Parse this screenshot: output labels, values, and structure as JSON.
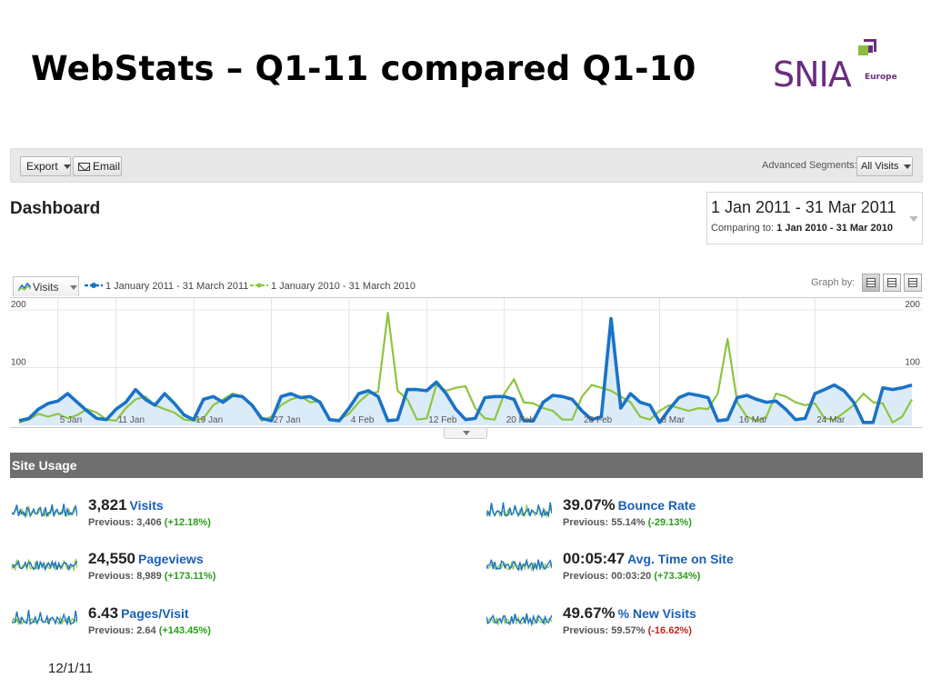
{
  "slide": {
    "title": "WebStats – Q1-11 compared Q1-10",
    "footer_date": "12/1/11"
  },
  "logo": {
    "text": "SNIA",
    "sub": "Europe",
    "colors": {
      "purple": "#6b2c7f",
      "green": "#8cbd3f"
    }
  },
  "toolbar": {
    "export_label": "Export",
    "email_label": "Email",
    "advanced_segments_label": "Advanced Segments:",
    "segment_value": "All Visits"
  },
  "dashboard": {
    "title": "Dashboard",
    "date_range": "1 Jan 2011 - 31 Mar 2011",
    "comparing_label": "Comparing to:",
    "comparing_range": "1 Jan 2010 - 31 Mar 2010"
  },
  "graph": {
    "metric_button": "Visits",
    "legend": [
      {
        "label": "1 January 2011 - 31 March 2011",
        "color": "#1a73c6"
      },
      {
        "label": "1 January 2010 - 31 March 2010",
        "color": "#8cc63f"
      }
    ],
    "graph_by_label": "Graph by:",
    "icons": [
      "visits-chart-icon",
      "graph-by-day-icon",
      "graph-by-week-icon",
      "graph-by-month-icon"
    ]
  },
  "chart_data": {
    "type": "line",
    "ylim": [
      0,
      200
    ],
    "y_ticks_left": [
      "200",
      "100"
    ],
    "y_ticks_right": [
      "200",
      "100"
    ],
    "x_tick_labels": [
      "5 Jan",
      "11 Jan",
      "19 Jan",
      "27 Jan",
      "4 Feb",
      "12 Feb",
      "20 Feb",
      "28 Feb",
      "8 Mar",
      "16 Mar",
      "24 Mar"
    ],
    "x_tick_days": [
      4,
      10,
      18,
      26,
      34,
      42,
      50,
      58,
      66,
      74,
      82
    ],
    "series": [
      {
        "name": "1 January 2011 - 31 March 2011",
        "color": "#1a73c6",
        "values": [
          8,
          12,
          28,
          38,
          42,
          55,
          40,
          25,
          12,
          10,
          28,
          40,
          62,
          45,
          35,
          55,
          38,
          18,
          10,
          45,
          50,
          40,
          52,
          50,
          35,
          12,
          8,
          50,
          55,
          48,
          50,
          40,
          10,
          8,
          30,
          55,
          60,
          50,
          8,
          10,
          62,
          62,
          60,
          75,
          55,
          28,
          10,
          12,
          48,
          50,
          50,
          45,
          8,
          8,
          40,
          52,
          50,
          45,
          25,
          10,
          15,
          185,
          30,
          55,
          40,
          35,
          5,
          28,
          48,
          55,
          52,
          48,
          8,
          10,
          48,
          52,
          45,
          40,
          42,
          28,
          10,
          12,
          55,
          62,
          70,
          60,
          40,
          5,
          5,
          65,
          62,
          65,
          70
        ]
      },
      {
        "name": "1 January 2010 - 31 March 2010",
        "color": "#8cc63f",
        "values": [
          5,
          10,
          20,
          15,
          20,
          12,
          18,
          28,
          22,
          10,
          8,
          30,
          45,
          50,
          35,
          28,
          22,
          10,
          8,
          12,
          35,
          45,
          55,
          50,
          35,
          8,
          15,
          35,
          45,
          50,
          40,
          42,
          10,
          10,
          20,
          40,
          55,
          58,
          195,
          60,
          45,
          10,
          12,
          70,
          60,
          65,
          68,
          30,
          12,
          10,
          55,
          80,
          40,
          38,
          30,
          25,
          10,
          10,
          50,
          70,
          65,
          60,
          50,
          40,
          15,
          10,
          25,
          35,
          30,
          25,
          30,
          28,
          55,
          150,
          40,
          15,
          8,
          15,
          55,
          50,
          40,
          35,
          38,
          12,
          10,
          22,
          35,
          55,
          40,
          38,
          5,
          15,
          45
        ]
      }
    ]
  },
  "site_usage": {
    "title": "Site Usage",
    "metrics": [
      {
        "value": "3,821",
        "label": "Visits",
        "previous_label": "Previous:",
        "previous_value": "3,406",
        "change": "(+12.18%)",
        "change_dir": "pos",
        "spark_icon": "visits-sparkline-icon"
      },
      {
        "value": "39.07%",
        "label": "Bounce Rate",
        "previous_label": "Previous:",
        "previous_value": "55.14%",
        "change": "(-29.13%)",
        "change_dir": "pos",
        "spark_icon": "bounce-rate-sparkline-icon"
      },
      {
        "value": "24,550",
        "label": "Pageviews",
        "previous_label": "Previous:",
        "previous_value": "8,989",
        "change": "(+173.11%)",
        "change_dir": "pos",
        "spark_icon": "pageviews-sparkline-icon"
      },
      {
        "value": "00:05:47",
        "label": "Avg. Time on Site",
        "previous_label": "Previous:",
        "previous_value": "00:03:20",
        "change": "(+73.34%)",
        "change_dir": "pos",
        "spark_icon": "avg-time-sparkline-icon"
      },
      {
        "value": "6.43",
        "label": "Pages/Visit",
        "previous_label": "Previous:",
        "previous_value": "2.64",
        "change": "(+143.45%)",
        "change_dir": "pos",
        "spark_icon": "pages-visit-sparkline-icon"
      },
      {
        "value": "49.67%",
        "label": "% New Visits",
        "previous_label": "Previous:",
        "previous_value": "59.57%",
        "change": "(-16.62%)",
        "change_dir": "neg",
        "spark_icon": "new-visits-sparkline-icon"
      }
    ]
  }
}
